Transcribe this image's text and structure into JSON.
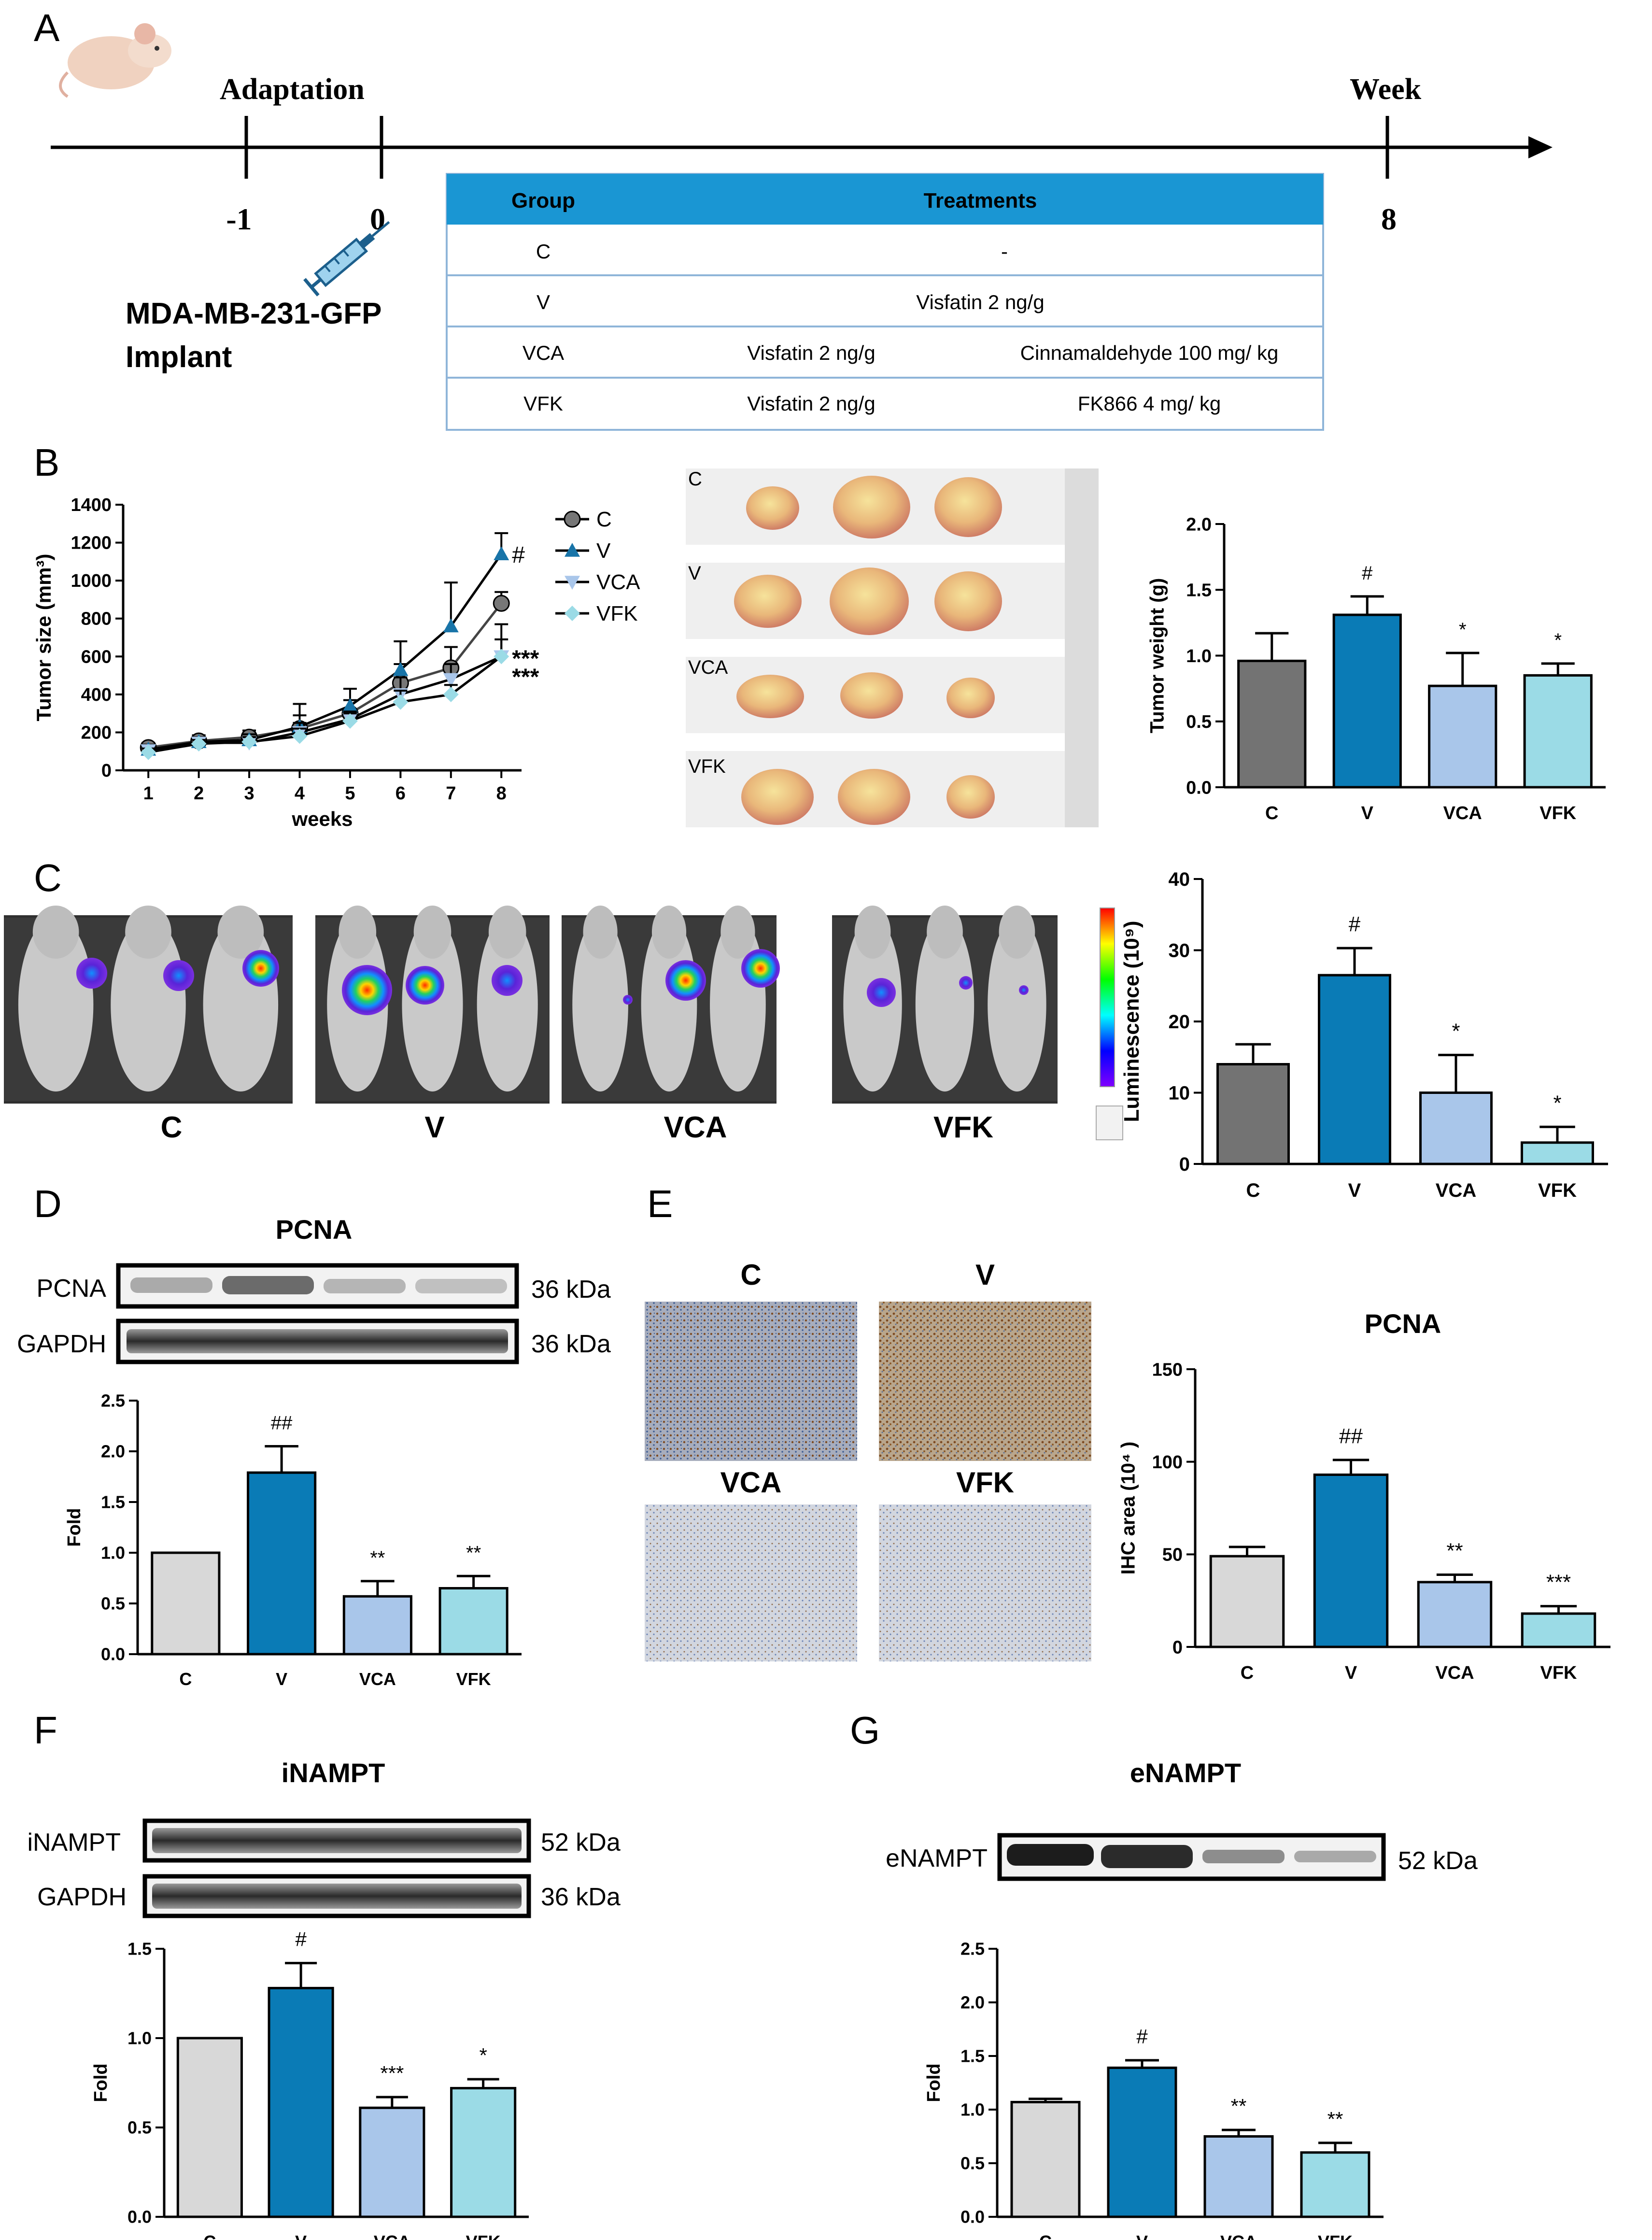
{
  "colors": {
    "C": "#737373",
    "V": "#0a7bb6",
    "VCA": "#a9c6ea",
    "VFK": "#9bdbe6",
    "C_blot": "#d8d8d8",
    "header": "#1a96d3",
    "tableBorder": "#8fb5d9"
  },
  "panel_labels": {
    "A": "A",
    "B": "B",
    "C": "C",
    "D": "D",
    "E": "E",
    "F": "F",
    "G": "G"
  },
  "timeline": {
    "adaptation": "Adaptation",
    "week": "Week",
    "ticks": [
      "-1",
      "0",
      "8"
    ],
    "implant_line1": "MDA-MB-231-GFP",
    "implant_line2": "Implant"
  },
  "table": {
    "headers": [
      "Group",
      "Treatments"
    ],
    "rows": [
      {
        "group": "C",
        "t1": "-",
        "t2": ""
      },
      {
        "group": "V",
        "t1": "Visfatin 2 ng/g",
        "t2": ""
      },
      {
        "group": "VCA",
        "t1": "Visfatin 2 ng/g",
        "t2": "Cinnamaldehyde 100 mg/ kg"
      },
      {
        "group": "VFK",
        "t1": "Visfatin 2 ng/g",
        "t2": "FK866 4 mg/ kg"
      }
    ]
  },
  "photo_labels": [
    "C",
    "V",
    "VCA",
    "VFK"
  ],
  "imaging_labels": [
    "C",
    "V",
    "VCA",
    "VFK"
  ],
  "ihc_labels": [
    "C",
    "V",
    "VCA",
    "VFK"
  ],
  "blots": {
    "D": {
      "title": "PCNA",
      "rows": [
        {
          "name": "PCNA",
          "kda": "36 kDa"
        },
        {
          "name": "GAPDH",
          "kda": "36 kDa"
        }
      ]
    },
    "F": {
      "title": "iNAMPT",
      "rows": [
        {
          "name": "iNAMPT",
          "kda": "52 kDa"
        },
        {
          "name": "GAPDH",
          "kda": "36 kDa"
        }
      ]
    },
    "G": {
      "title": "eNAMPT",
      "rows": [
        {
          "name": "eNAMPT",
          "kda": "52 kDa"
        }
      ]
    }
  },
  "chart_data": [
    {
      "id": "B-size",
      "type": "line",
      "ylabel": "Tumor size (mm³)",
      "xlabel": "weeks",
      "x": [
        1,
        2,
        3,
        4,
        5,
        6,
        7,
        8
      ],
      "xlim": [
        0.5,
        8.4
      ],
      "ylim": [
        0,
        1400
      ],
      "yticks": [
        0,
        200,
        400,
        600,
        800,
        1000,
        1200,
        1400
      ],
      "series": [
        {
          "name": "C",
          "values": [
            120,
            155,
            175,
            220,
            300,
            460,
            540,
            880
          ],
          "errors": [
            25,
            30,
            35,
            130,
            70,
            100,
            110,
            60
          ]
        },
        {
          "name": "V",
          "values": [
            110,
            150,
            160,
            230,
            340,
            530,
            760,
            1140
          ],
          "errors": [
            25,
            25,
            30,
            60,
            90,
            150,
            230,
            110
          ]
        },
        {
          "name": "VCA",
          "values": [
            105,
            145,
            145,
            200,
            270,
            400,
            480,
            600
          ],
          "errors": [
            20,
            25,
            25,
            50,
            40,
            90,
            80,
            170
          ]
        },
        {
          "name": "VFK",
          "values": [
            95,
            140,
            150,
            180,
            260,
            360,
            400,
            600
          ],
          "errors": [
            20,
            20,
            25,
            40,
            40,
            60,
            50,
            90
          ]
        }
      ],
      "annotations": [
        "#",
        "***",
        "***"
      ]
    },
    {
      "id": "B-weight",
      "type": "bar",
      "ylabel": "Tumor weight (g)",
      "categories": [
        "C",
        "V",
        "VCA",
        "VFK"
      ],
      "values": [
        0.96,
        1.31,
        0.77,
        0.85
      ],
      "errors": [
        0.21,
        0.14,
        0.25,
        0.09
      ],
      "ylim": [
        0,
        2.0
      ],
      "yticks": [
        "0.0",
        "0.5",
        "1.0",
        "1.5",
        "2.0"
      ],
      "marks": [
        "",
        "#",
        "*",
        "*"
      ]
    },
    {
      "id": "C-lum",
      "type": "bar",
      "ylabel": "Luminescence (10⁹)",
      "categories": [
        "C",
        "V",
        "VCA",
        "VFK"
      ],
      "values": [
        14,
        26.5,
        10,
        3
      ],
      "errors": [
        2.8,
        3.8,
        5.3,
        2.2
      ],
      "ylim": [
        0,
        40
      ],
      "yticks": [
        "0",
        "10",
        "20",
        "30",
        "40"
      ],
      "marks": [
        "",
        "#",
        "*",
        "*"
      ]
    },
    {
      "id": "D-fold",
      "type": "bar",
      "ylabel": "Fold",
      "categories": [
        "C",
        "V",
        "VCA",
        "VFK"
      ],
      "values": [
        1.0,
        1.79,
        0.57,
        0.65
      ],
      "errors": [
        0,
        0.26,
        0.15,
        0.12
      ],
      "ylim": [
        0,
        2.5
      ],
      "yticks": [
        "0.0",
        "0.5",
        "1.0",
        "1.5",
        "2.0",
        "2.5"
      ],
      "marks": [
        "",
        "##",
        "**",
        "**"
      ]
    },
    {
      "id": "E-ihc",
      "type": "bar",
      "title": "PCNA",
      "ylabel": "IHC area (10⁴ )",
      "categories": [
        "C",
        "V",
        "VCA",
        "VFK"
      ],
      "values": [
        49,
        93,
        35,
        18
      ],
      "errors": [
        5,
        8,
        4,
        4
      ],
      "ylim": [
        0,
        150
      ],
      "yticks": [
        "0",
        "50",
        "100",
        "150"
      ],
      "marks": [
        "",
        "##",
        "**",
        "***"
      ]
    },
    {
      "id": "F-fold",
      "type": "bar",
      "ylabel": "Fold",
      "categories": [
        "C",
        "V",
        "VCA",
        "VFK"
      ],
      "values": [
        1.0,
        1.28,
        0.61,
        0.72
      ],
      "errors": [
        0,
        0.14,
        0.06,
        0.05
      ],
      "ylim": [
        0,
        1.5
      ],
      "yticks": [
        "0.0",
        "0.5",
        "1.0",
        "1.5"
      ],
      "marks": [
        "",
        "#",
        "***",
        "*"
      ]
    },
    {
      "id": "G-fold",
      "type": "bar",
      "ylabel": "Fold",
      "categories": [
        "C",
        "V",
        "VCA",
        "VFK"
      ],
      "values": [
        1.07,
        1.39,
        0.75,
        0.6
      ],
      "errors": [
        0.03,
        0.07,
        0.06,
        0.09
      ],
      "ylim": [
        0,
        2.5
      ],
      "yticks": [
        "0.0",
        "0.5",
        "1.0",
        "1.5",
        "2.0",
        "2.5"
      ],
      "marks": [
        "",
        "#",
        "**",
        "**"
      ]
    }
  ]
}
